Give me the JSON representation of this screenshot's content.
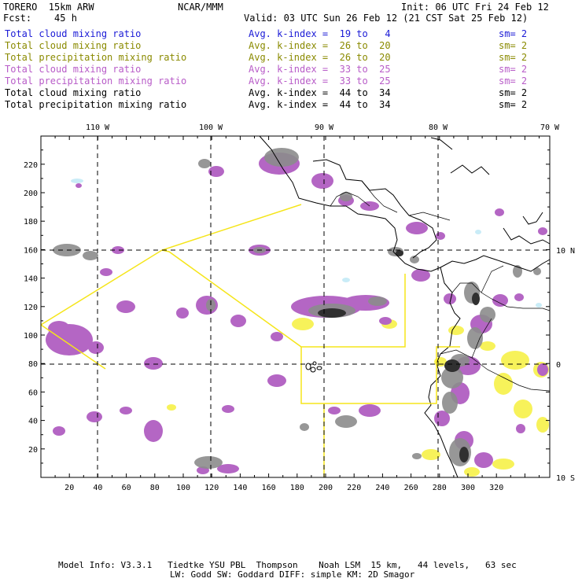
{
  "header": {
    "model_name": "TORERO  15km ARW",
    "org": "NCAR/MMM",
    "init": "Init: 06 UTC Fri 24 Feb 12",
    "forecast": "Fcst:    45 h",
    "valid": "Valid: 03 UTC Sun 26 Feb 12 (21 CST Sat 25 Feb 12)"
  },
  "legend": {
    "rows": [
      {
        "field": "Total cloud mixing ratio",
        "kindex": "Avg. k-index =  19 to   4",
        "sm": "sm= 2",
        "color": "#1a1ad6"
      },
      {
        "field": "Total cloud mixing ratio",
        "kindex": "Avg. k-index =  26 to  20",
        "sm": "sm= 2",
        "color": "#8a8a00"
      },
      {
        "field": "Total precipitation mixing ratio",
        "kindex": "Avg. k-index =  26 to  20",
        "sm": "sm= 2",
        "color": "#8a8a00"
      },
      {
        "field": "Total cloud mixing ratio",
        "kindex": "Avg. k-index =  33 to  25",
        "sm": "sm= 2",
        "color": "#b85cc8"
      },
      {
        "field": "Total precipitation mixing ratio",
        "kindex": "Avg. k-index =  33 to  25",
        "sm": "sm= 2",
        "color": "#b85cc8"
      },
      {
        "field": "Total cloud mixing ratio",
        "kindex": "Avg. k-index =  44 to  34",
        "sm": "sm= 2",
        "color": "#000000"
      },
      {
        "field": "Total precipitation mixing ratio",
        "kindex": "Avg. k-index =  44 to  34",
        "sm": "sm= 2",
        "color": "#000000"
      }
    ]
  },
  "map": {
    "lon_labels": [
      "110 W",
      "100 W",
      "90 W",
      "80 W",
      "70 W"
    ],
    "lat_labels": [
      "10 N",
      "0",
      "10 S"
    ],
    "y_ticks": [
      "220",
      "200",
      "180",
      "160",
      "140",
      "120",
      "100",
      "80",
      "60",
      "40",
      "20"
    ],
    "x_ticks": [
      "20",
      "40",
      "60",
      "80",
      "100",
      "120",
      "140",
      "160",
      "180",
      "200",
      "220",
      "240",
      "260",
      "280",
      "300",
      "320"
    ],
    "colors": {
      "grid": "#000000",
      "coast": "#000000",
      "domain_box": "#f5e51a",
      "purple": "#b466c4",
      "gray": "#8c8c8c",
      "dark": "#303030",
      "yellow": "#f7f25a",
      "light_blue": "#c9ecf7"
    }
  },
  "footer": {
    "line1": "Model Info: V3.3.1   Tiedtke YSU PBL  Thompson    Noah LSM  15 km,   44 levels,   63 sec",
    "line2": "LW: Godd SW: Goddard DIFF: simple KM: 2D Smagor"
  }
}
